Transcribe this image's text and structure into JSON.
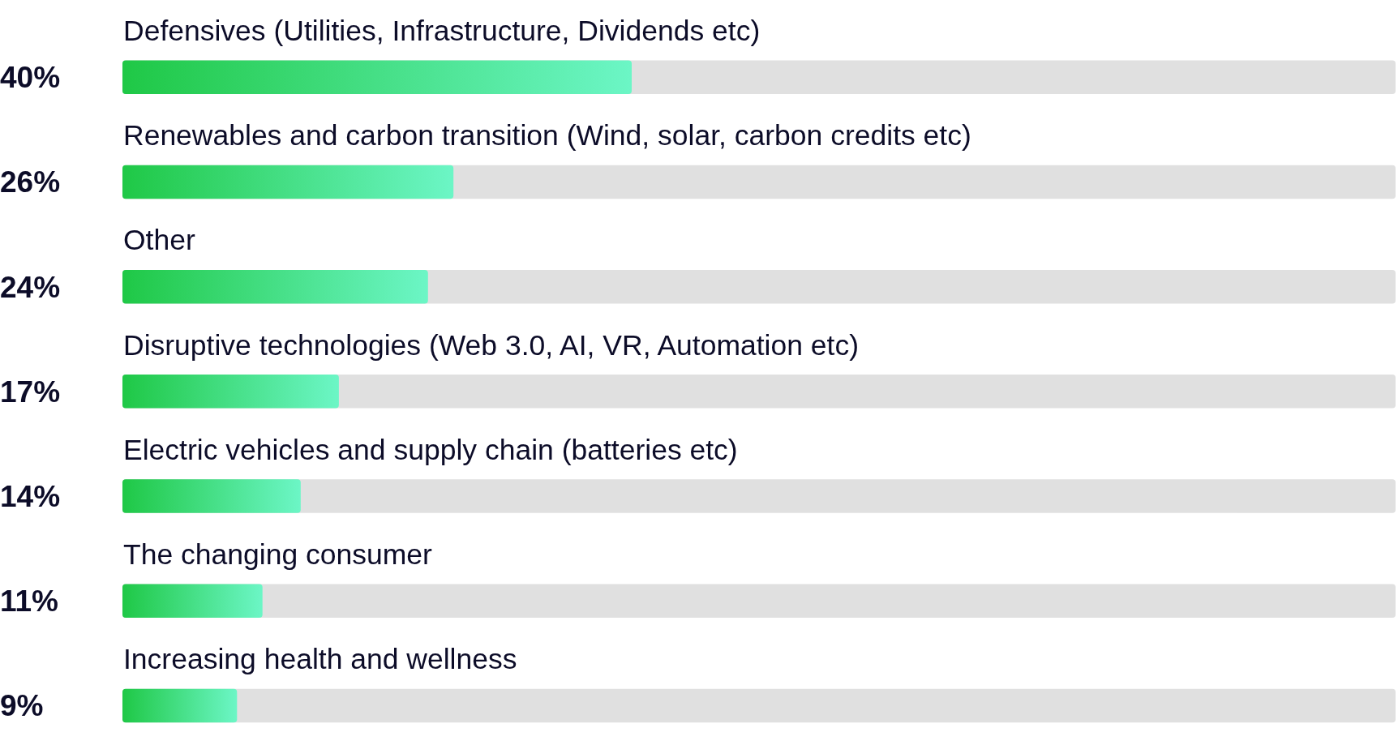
{
  "chart_data": {
    "type": "bar",
    "orientation": "horizontal",
    "categories": [
      "Defensives (Utilities, Infrastructure, Dividends etc)",
      "Renewables and carbon transition (Wind, solar, carbon credits etc)",
      "Other",
      "Disruptive technologies (Web 3.0, AI, VR, Automation etc)",
      "Electric vehicles and supply chain (batteries etc)",
      "The changing consumer",
      "Increasing health and wellness"
    ],
    "values": [
      40,
      26,
      24,
      17,
      14,
      11,
      9
    ],
    "value_labels": [
      "40%",
      "26%",
      "24%",
      "17%",
      "14%",
      "11%",
      "9%"
    ],
    "color": "#1fc846",
    "xlim": [
      0,
      100
    ],
    "tick_labels": "y"
  }
}
